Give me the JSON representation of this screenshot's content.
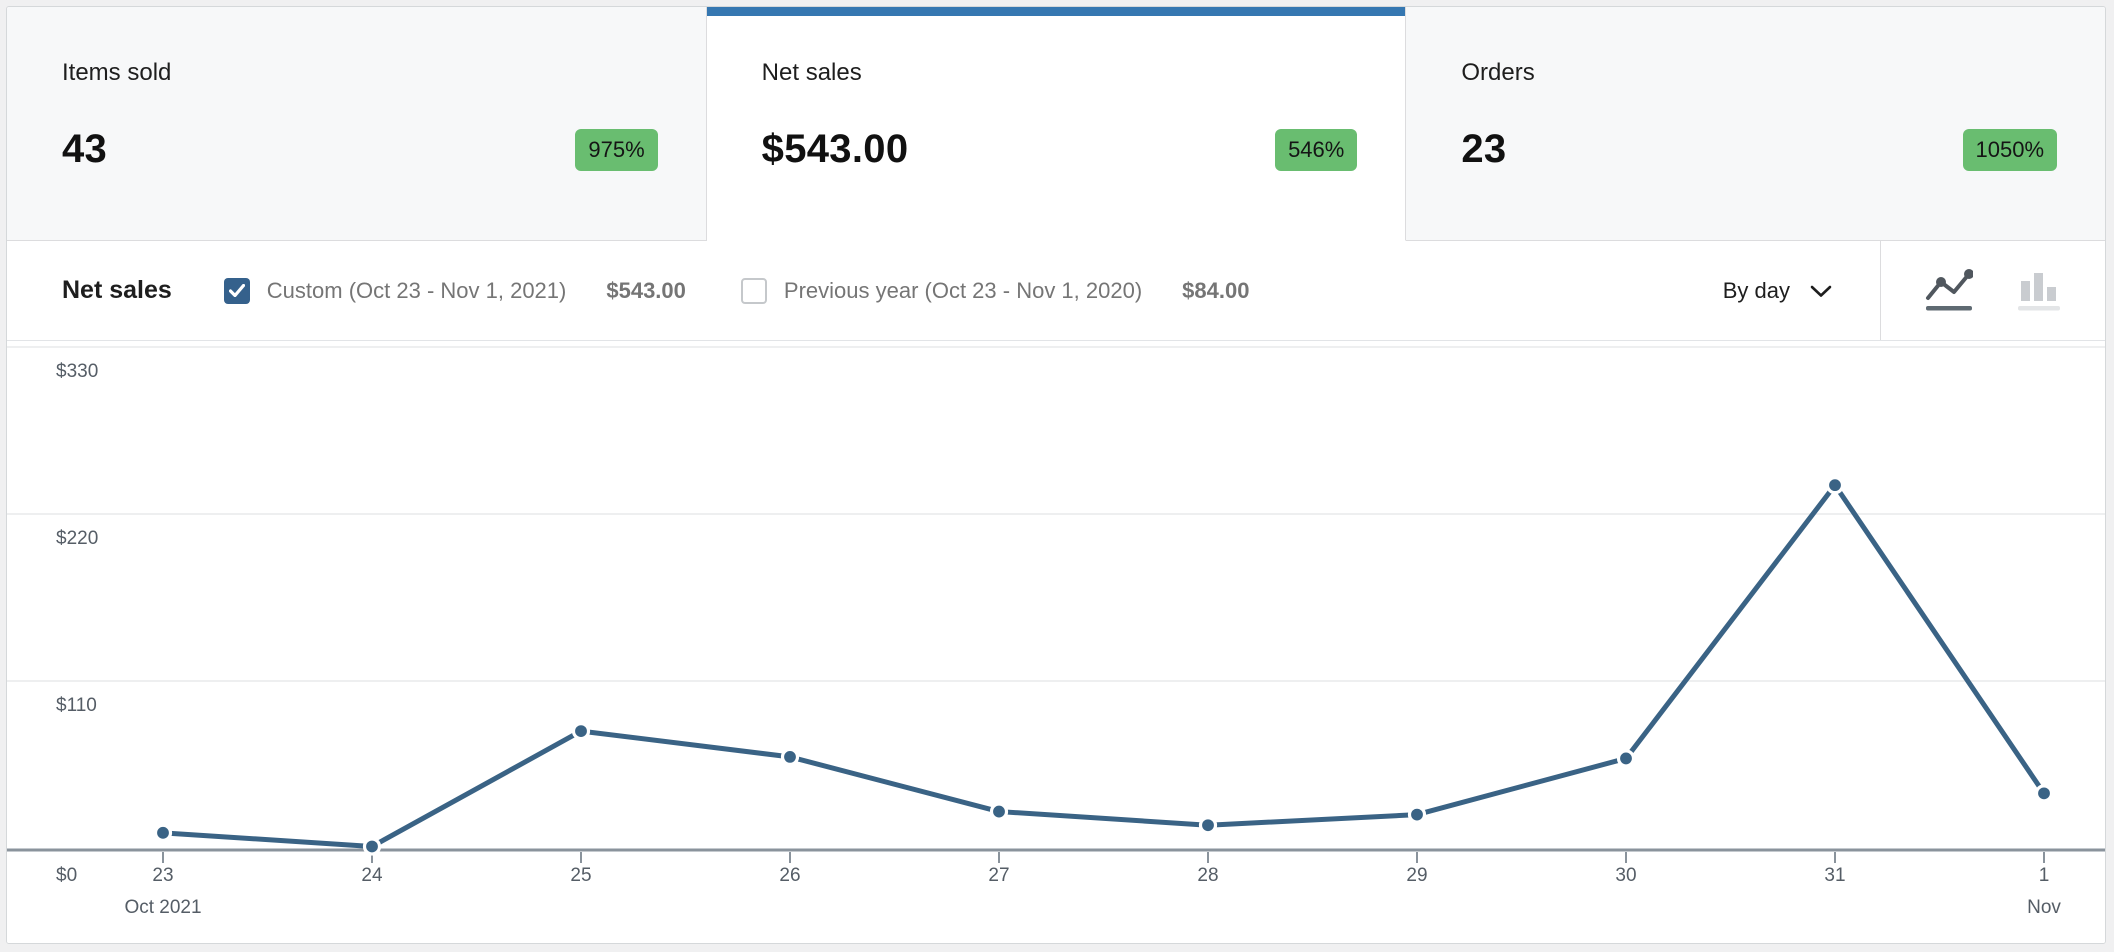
{
  "summary_tabs": [
    {
      "label": "Items sold",
      "value": "43",
      "delta": "975%",
      "selected": false
    },
    {
      "label": "Net sales",
      "value": "$543.00",
      "delta": "546%",
      "selected": true
    },
    {
      "label": "Orders",
      "value": "23",
      "delta": "1050%",
      "selected": false
    }
  ],
  "chart_header": {
    "title": "Net sales",
    "series_toggles": [
      {
        "label": "Custom (Oct 23 - Nov 1, 2021)",
        "total": "$543.00",
        "checked": true
      },
      {
        "label": "Previous year (Oct 23 - Nov 1, 2020)",
        "total": "$84.00",
        "checked": false
      }
    ],
    "interval_select": "By day",
    "active_chart_type": "line"
  },
  "icons": {
    "checkbox_checked": "checkmark",
    "interval_chevron": "chevron-down",
    "chart_type_line": "line-chart",
    "chart_type_bar": "bar-chart"
  },
  "chart_data": {
    "type": "line",
    "title": "Net sales",
    "x": [
      "23",
      "24",
      "25",
      "26",
      "27",
      "28",
      "29",
      "30",
      "31",
      "1"
    ],
    "x_sub_labels": [
      {
        "index": 0,
        "label": "Oct 2021"
      },
      {
        "index": 9,
        "label": "Nov"
      }
    ],
    "series": [
      {
        "name": "Custom (Oct 23 - Nov 1, 2021)",
        "values": [
          10,
          1,
          77,
          60,
          24,
          15,
          22,
          59,
          239,
          36
        ]
      }
    ],
    "ylim": [
      0,
      330
    ],
    "yticks": [
      330,
      220,
      110,
      0
    ],
    "ylabels": [
      "$330",
      "$220",
      "$110",
      "$0"
    ],
    "grid": "horizontal",
    "legend_position": "header",
    "line_color": "#3a6385"
  },
  "colors": {
    "accent-blue": "#3577b1",
    "checkbox-blue": "#35618c",
    "badge-green": "#69bd70",
    "line-blue": "#3a6385"
  }
}
